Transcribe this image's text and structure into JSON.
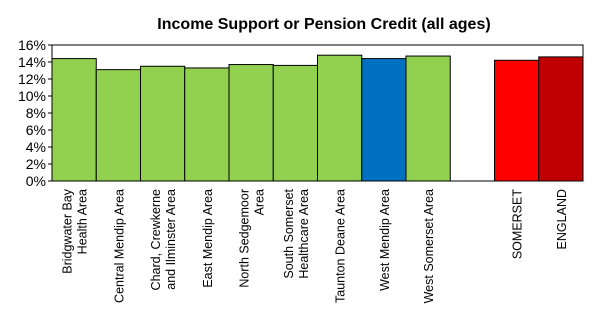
{
  "chart_data": {
    "type": "bar",
    "title": "Income Support or Pension Credit (all ages)",
    "categories": [
      [
        "Bridgwater Bay",
        "Health Area"
      ],
      [
        "Central Mendip Area"
      ],
      [
        "Chard, Crewkerne",
        "and Ilminster Area"
      ],
      [
        "East Mendip Area"
      ],
      [
        "North Sedgemoor",
        "Area"
      ],
      [
        "South Somerset",
        "Healthcare Area"
      ],
      [
        "Taunton Deane Area"
      ],
      [
        "West Mendip Area"
      ],
      [
        "West Somerset Area"
      ],
      [
        ""
      ],
      [
        "SOMERSET"
      ],
      [
        "ENGLAND"
      ]
    ],
    "values": [
      14.4,
      13.1,
      13.5,
      13.3,
      13.7,
      13.6,
      14.8,
      14.4,
      14.7,
      null,
      14.2,
      14.6
    ],
    "bar_colors": [
      "#92d050",
      "#92d050",
      "#92d050",
      "#92d050",
      "#92d050",
      "#92d050",
      "#92d050",
      "#0070c0",
      "#92d050",
      null,
      "#ff0000",
      "#c00000"
    ],
    "ylim": [
      0,
      16
    ],
    "yticks": [
      "0%",
      "2%",
      "4%",
      "6%",
      "8%",
      "10%",
      "12%",
      "14%",
      "16%"
    ],
    "grid": false,
    "legend": "none"
  }
}
